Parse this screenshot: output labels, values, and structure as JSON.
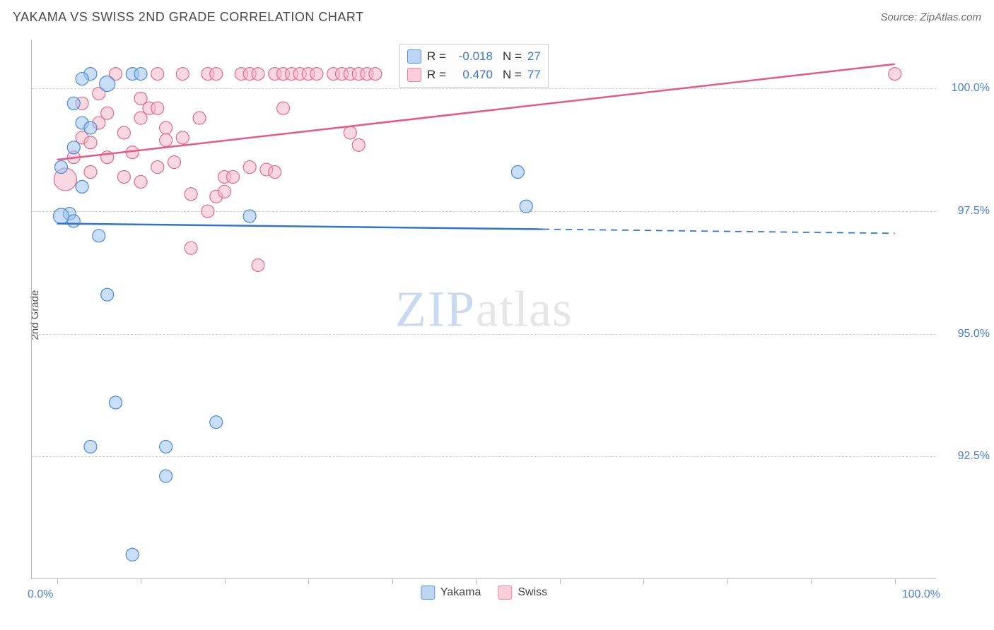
{
  "title": "YAKAMA VS SWISS 2ND GRADE CORRELATION CHART",
  "source": "Source: ZipAtlas.com",
  "watermark": {
    "zip": "ZIP",
    "atlas": "atlas"
  },
  "y_axis": {
    "label": "2nd Grade",
    "min": 90.0,
    "max": 101.0,
    "ticks": [
      92.5,
      95.0,
      97.5,
      100.0
    ],
    "tick_labels": [
      "92.5%",
      "95.0%",
      "97.5%",
      "100.0%"
    ],
    "label_color": "#4a7fd6",
    "label_fontsize": 16
  },
  "x_axis": {
    "min": -3,
    "max": 105,
    "ticks": [
      0,
      10,
      20,
      30,
      40,
      50,
      60,
      70,
      80,
      90,
      100
    ],
    "end_labels": [
      "0.0%",
      "100.0%"
    ],
    "label_color": "#4a7fd6"
  },
  "grid_color": "#d0d0d0",
  "background": "#ffffff",
  "series": [
    {
      "name": "Yakama",
      "color_fill": "#9cc3f0",
      "color_stroke": "#4a8ad4",
      "swatch_fill": "#bcd6f2",
      "swatch_stroke": "#5b94d9",
      "r_value": "-0.018",
      "n_value": "27",
      "trend": {
        "y_start": 97.25,
        "y_end": 97.05,
        "solid_until_x": 58,
        "color": "#2f74d0",
        "width": 2.5
      },
      "points": [
        {
          "x": 4,
          "y": 100.3,
          "r": 9
        },
        {
          "x": 3,
          "y": 100.2,
          "r": 9
        },
        {
          "x": 6,
          "y": 100.1,
          "r": 11
        },
        {
          "x": 9,
          "y": 100.3,
          "r": 9
        },
        {
          "x": 10,
          "y": 100.3,
          "r": 9
        },
        {
          "x": 2,
          "y": 99.7,
          "r": 9
        },
        {
          "x": 3,
          "y": 99.3,
          "r": 9
        },
        {
          "x": 4,
          "y": 99.2,
          "r": 9
        },
        {
          "x": 2,
          "y": 98.8,
          "r": 9
        },
        {
          "x": 0.5,
          "y": 98.4,
          "r": 9
        },
        {
          "x": 1.5,
          "y": 97.45,
          "r": 9
        },
        {
          "x": 2,
          "y": 97.3,
          "r": 9
        },
        {
          "x": 55,
          "y": 98.3,
          "r": 9
        },
        {
          "x": 56,
          "y": 97.6,
          "r": 9
        },
        {
          "x": 23,
          "y": 97.4,
          "r": 9
        },
        {
          "x": 5,
          "y": 97.0,
          "r": 9
        },
        {
          "x": 6,
          "y": 95.8,
          "r": 9
        },
        {
          "x": 7,
          "y": 93.6,
          "r": 9
        },
        {
          "x": 4,
          "y": 92.7,
          "r": 9
        },
        {
          "x": 13,
          "y": 92.7,
          "r": 9
        },
        {
          "x": 19,
          "y": 93.2,
          "r": 9
        },
        {
          "x": 13,
          "y": 92.1,
          "r": 9
        },
        {
          "x": 9,
          "y": 90.5,
          "r": 9
        },
        {
          "x": 3,
          "y": 98.0,
          "r": 9
        },
        {
          "x": 0.5,
          "y": 97.4,
          "r": 11
        }
      ]
    },
    {
      "name": "Swiss",
      "color_fill": "#f6b8cb",
      "color_stroke": "#e06a8e",
      "swatch_fill": "#f9cdd9",
      "swatch_stroke": "#ea87a4",
      "r_value": "0.470",
      "n_value": "77",
      "trend": {
        "y_start": 98.55,
        "y_end": 100.5,
        "solid_until_x": 100,
        "color": "#e45a85",
        "width": 2.5
      },
      "points": [
        {
          "x": 1,
          "y": 98.15,
          "r": 16
        },
        {
          "x": 2,
          "y": 98.6,
          "r": 9
        },
        {
          "x": 3,
          "y": 99.0,
          "r": 9
        },
        {
          "x": 4,
          "y": 98.9,
          "r": 9
        },
        {
          "x": 5,
          "y": 99.3,
          "r": 9
        },
        {
          "x": 6,
          "y": 99.5,
          "r": 9
        },
        {
          "x": 3,
          "y": 99.7,
          "r": 9
        },
        {
          "x": 5,
          "y": 99.9,
          "r": 9
        },
        {
          "x": 7,
          "y": 100.3,
          "r": 9
        },
        {
          "x": 8,
          "y": 99.1,
          "r": 9
        },
        {
          "x": 9,
          "y": 98.7,
          "r": 9
        },
        {
          "x": 10,
          "y": 99.4,
          "r": 9
        },
        {
          "x": 11,
          "y": 99.6,
          "r": 9
        },
        {
          "x": 12,
          "y": 100.3,
          "r": 9
        },
        {
          "x": 13,
          "y": 99.2,
          "r": 9
        },
        {
          "x": 14,
          "y": 98.5,
          "r": 9
        },
        {
          "x": 15,
          "y": 99.0,
          "r": 9
        },
        {
          "x": 8,
          "y": 98.2,
          "r": 9
        },
        {
          "x": 10,
          "y": 98.1,
          "r": 9
        },
        {
          "x": 12,
          "y": 98.4,
          "r": 9
        },
        {
          "x": 16,
          "y": 97.85,
          "r": 9
        },
        {
          "x": 18,
          "y": 97.5,
          "r": 9
        },
        {
          "x": 19,
          "y": 97.8,
          "r": 9
        },
        {
          "x": 16,
          "y": 96.75,
          "r": 9
        },
        {
          "x": 20,
          "y": 98.2,
          "r": 9
        },
        {
          "x": 22,
          "y": 100.3,
          "r": 9
        },
        {
          "x": 23,
          "y": 100.3,
          "r": 9
        },
        {
          "x": 24,
          "y": 100.3,
          "r": 9
        },
        {
          "x": 26,
          "y": 100.3,
          "r": 9
        },
        {
          "x": 27,
          "y": 100.3,
          "r": 9
        },
        {
          "x": 28,
          "y": 100.3,
          "r": 9
        },
        {
          "x": 29,
          "y": 100.3,
          "r": 9
        },
        {
          "x": 30,
          "y": 100.3,
          "r": 9
        },
        {
          "x": 31,
          "y": 100.3,
          "r": 9
        },
        {
          "x": 33,
          "y": 100.3,
          "r": 9
        },
        {
          "x": 34,
          "y": 100.3,
          "r": 9
        },
        {
          "x": 35,
          "y": 100.3,
          "r": 9
        },
        {
          "x": 36,
          "y": 100.3,
          "r": 9
        },
        {
          "x": 37,
          "y": 100.3,
          "r": 9
        },
        {
          "x": 38,
          "y": 100.3,
          "r": 9
        },
        {
          "x": 24,
          "y": 96.4,
          "r": 9
        },
        {
          "x": 20,
          "y": 97.9,
          "r": 9
        },
        {
          "x": 21,
          "y": 98.2,
          "r": 9
        },
        {
          "x": 23,
          "y": 98.4,
          "r": 9
        },
        {
          "x": 25,
          "y": 98.35,
          "r": 9
        },
        {
          "x": 26,
          "y": 98.3,
          "r": 9
        },
        {
          "x": 27,
          "y": 99.6,
          "r": 9
        },
        {
          "x": 35,
          "y": 99.1,
          "r": 9
        },
        {
          "x": 36,
          "y": 98.85,
          "r": 9
        },
        {
          "x": 17,
          "y": 99.4,
          "r": 9
        },
        {
          "x": 18,
          "y": 100.3,
          "r": 9
        },
        {
          "x": 19,
          "y": 100.3,
          "r": 9
        },
        {
          "x": 15,
          "y": 100.3,
          "r": 9
        },
        {
          "x": 13,
          "y": 98.95,
          "r": 9
        },
        {
          "x": 100,
          "y": 100.3,
          "r": 9
        },
        {
          "x": 12,
          "y": 99.6,
          "r": 9
        },
        {
          "x": 10,
          "y": 99.8,
          "r": 9
        },
        {
          "x": 6,
          "y": 98.6,
          "r": 9
        },
        {
          "x": 4,
          "y": 98.3,
          "r": 9
        }
      ]
    }
  ],
  "stats_box": {
    "rows": [
      {
        "series_index": 0,
        "r_prefix": "R =",
        "n_prefix": "N ="
      },
      {
        "series_index": 1,
        "r_prefix": "R =",
        "n_prefix": "N ="
      }
    ]
  },
  "legend_bottom": [
    {
      "series_index": 0
    },
    {
      "series_index": 1
    }
  ]
}
